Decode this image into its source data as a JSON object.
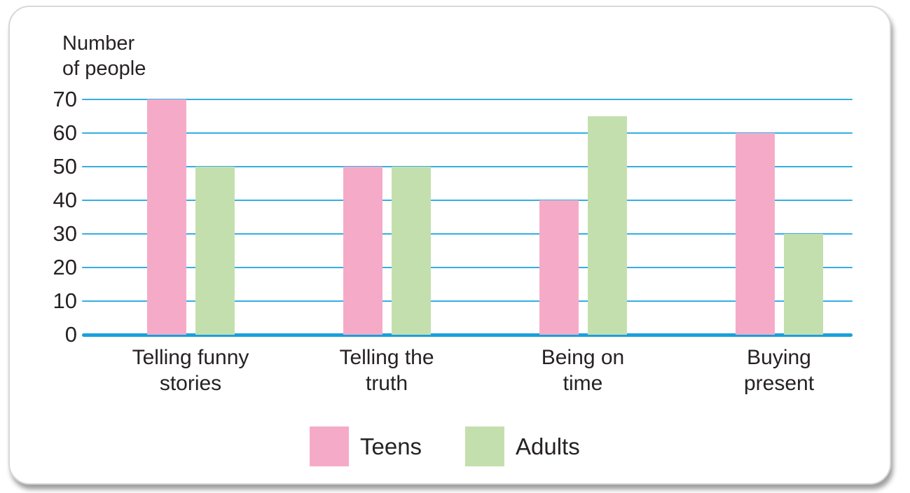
{
  "chart_data": {
    "type": "bar",
    "title": "",
    "ylabel": "Number\nof people",
    "xlabel": "",
    "categories": [
      "Telling funny\nstories",
      "Telling the\ntruth",
      "Being on\ntime",
      "Buying\npresent"
    ],
    "series": [
      {
        "name": "Teens",
        "color": "#f5abc8",
        "values": [
          70,
          50,
          40,
          60
        ]
      },
      {
        "name": "Adults",
        "color": "#c4dfae",
        "values": [
          50,
          50,
          65,
          30
        ]
      }
    ],
    "yticks": [
      0,
      10,
      20,
      30,
      40,
      50,
      60,
      70
    ],
    "ylim": [
      0,
      70
    ],
    "grid": true,
    "grid_color": "#35aee4",
    "axis_color": "#1a9fdc",
    "text_color": "#262223",
    "legend_position": "bottom"
  }
}
